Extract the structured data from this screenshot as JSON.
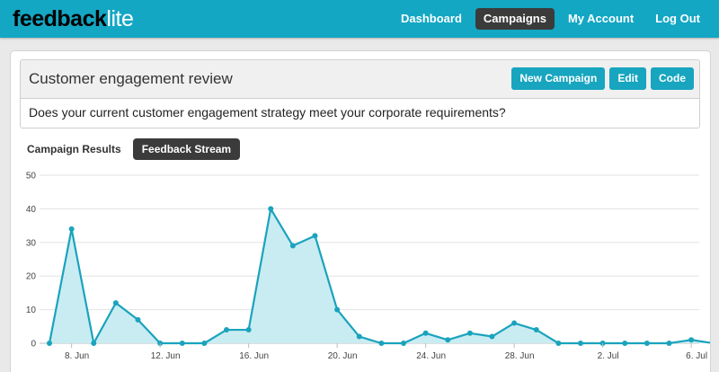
{
  "brand": {
    "main": "feedback",
    "accent": "lite"
  },
  "nav": {
    "items": [
      {
        "label": "Dashboard",
        "active": false
      },
      {
        "label": "Campaigns",
        "active": true
      },
      {
        "label": "My Account",
        "active": false
      },
      {
        "label": "Log Out",
        "active": false
      }
    ]
  },
  "campaign": {
    "title": "Customer engagement review",
    "question": "Does your current customer engagement strategy meet your corporate requirements?",
    "actions": {
      "new_campaign": "New Campaign",
      "edit": "Edit",
      "code": "Code"
    }
  },
  "tabs": {
    "results": "Campaign Results",
    "stream": "Feedback Stream"
  },
  "colors": {
    "accent": "#13a7c4",
    "dark": "#3b3b3b",
    "line": "#1aa3bd",
    "fill": "#c9ecf2"
  },
  "chart_data": {
    "type": "area",
    "ylim": [
      0,
      50
    ],
    "yticks": [
      0,
      10,
      20,
      30,
      40,
      50
    ],
    "x": [
      "7 Jun",
      "8 Jun",
      "9 Jun",
      "10 Jun",
      "11 Jun",
      "12 Jun",
      "13 Jun",
      "14 Jun",
      "15 Jun",
      "16 Jun",
      "17 Jun",
      "18 Jun",
      "19 Jun",
      "20 Jun",
      "21 Jun",
      "22 Jun",
      "23 Jun",
      "24 Jun",
      "25 Jun",
      "26 Jun",
      "27 Jun",
      "28 Jun",
      "29 Jun",
      "30 Jun",
      "1 Jul",
      "2 Jul",
      "3 Jul",
      "4 Jul",
      "5 Jul",
      "6 Jul",
      "7 Jul"
    ],
    "xtick_labels": [
      "8. Jun",
      "12. Jun",
      "16. Jun",
      "20. Jun",
      "24. Jun",
      "28. Jun",
      "2. Jul",
      "6. Jul"
    ],
    "series": [
      {
        "values": [
          0,
          34,
          0,
          12,
          7,
          0,
          0,
          0,
          4,
          4,
          40,
          29,
          32,
          10,
          2,
          0,
          0,
          3,
          1,
          3,
          2,
          6,
          4,
          0,
          0,
          0,
          0,
          0,
          0,
          1,
          0
        ]
      }
    ],
    "grid": true
  }
}
